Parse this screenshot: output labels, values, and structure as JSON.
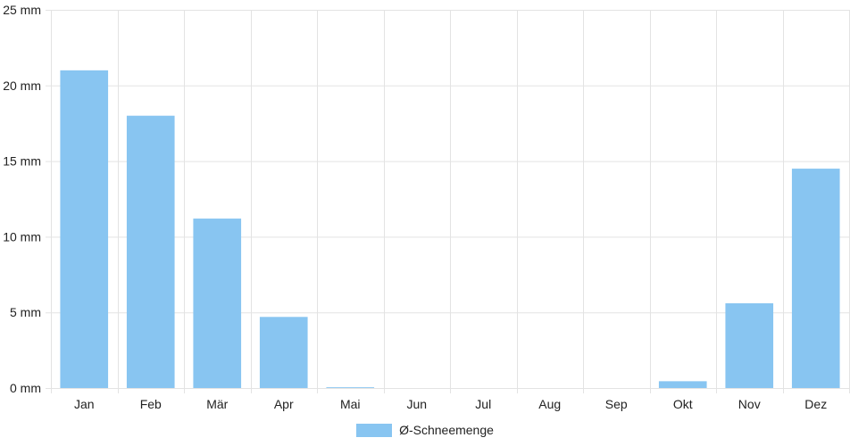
{
  "chart_data": {
    "type": "bar",
    "categories": [
      "Jan",
      "Feb",
      "Mär",
      "Apr",
      "Mai",
      "Jun",
      "Jul",
      "Aug",
      "Sep",
      "Okt",
      "Nov",
      "Dez"
    ],
    "series": [
      {
        "name": "Ø-Schneemenge",
        "values": [
          21.0,
          18.0,
          11.2,
          4.7,
          0.05,
          0,
          0,
          0,
          0,
          0.45,
          5.6,
          14.5
        ]
      }
    ],
    "ylim": [
      0,
      25
    ],
    "yticks": [
      0,
      5,
      10,
      15,
      20,
      25
    ],
    "yunit": "mm",
    "grid": true,
    "legend_position": "bottom"
  },
  "colors": {
    "bar": "#88c5f1",
    "grid": "#e3e3e3"
  }
}
